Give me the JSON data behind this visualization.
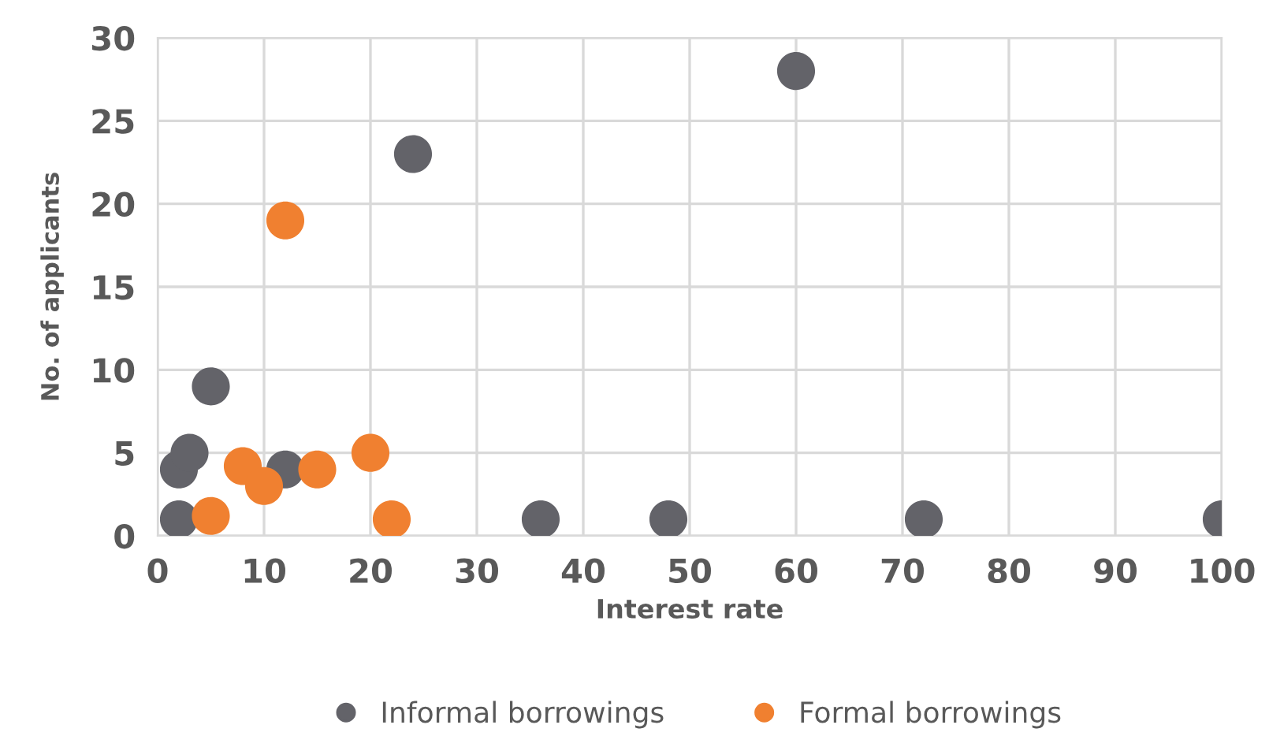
{
  "chart_data": {
    "type": "scatter",
    "xlabel": "Interest rate",
    "ylabel": "No. of applicants",
    "xlim": [
      0,
      100
    ],
    "xticks": [
      0,
      10,
      20,
      30,
      40,
      50,
      60,
      70,
      80,
      90,
      100
    ],
    "ylim": [
      0,
      30
    ],
    "yticks": [
      0,
      5,
      10,
      15,
      20,
      25,
      30
    ],
    "grid": true,
    "legend": "bottom",
    "marker": "circle",
    "series": [
      {
        "name": "Informal borrowings",
        "color": "#636369",
        "x": [
          2,
          2,
          3,
          5,
          12,
          24,
          36,
          48,
          60,
          72,
          100
        ],
        "values": [
          1,
          4,
          5,
          9,
          4,
          23,
          1,
          1,
          28,
          1,
          1
        ]
      },
      {
        "name": "Formal borrowings",
        "color": "#f08030",
        "x": [
          5,
          8,
          10,
          12,
          15,
          20,
          22
        ],
        "values": [
          1.2,
          4.2,
          3,
          19,
          4,
          5,
          1
        ]
      }
    ]
  }
}
